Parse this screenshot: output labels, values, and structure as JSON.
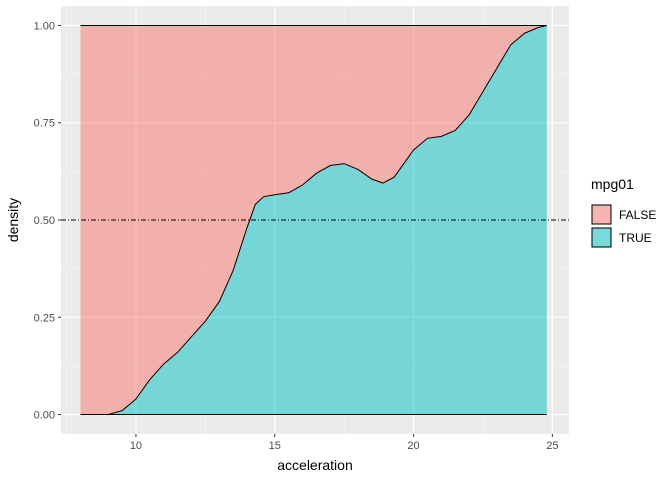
{
  "chart_data": {
    "type": "area",
    "stacking": "fill",
    "xlabel": "acceleration",
    "ylabel": "density",
    "xlim": [
      7.3,
      25.6
    ],
    "ylim": [
      -0.05,
      1.05
    ],
    "x_ticks": [
      10,
      15,
      20,
      25
    ],
    "y_ticks": [
      0,
      0.25,
      0.5,
      0.75,
      1
    ],
    "x_tick_labels": [
      "10",
      "15",
      "20",
      "25"
    ],
    "y_tick_labels": [
      "0.00",
      "0.25",
      "0.50",
      "0.75",
      "1.00"
    ],
    "grid": true,
    "legend": {
      "title": "mpg01",
      "position": "right",
      "entries": [
        {
          "label": "FALSE",
          "color": "#F8766D"
        },
        {
          "label": "TRUE",
          "color": "#00BFC4"
        }
      ]
    },
    "reference_line": {
      "y": 0.5,
      "style": "dotdash"
    },
    "x": [
      8.0,
      9.0,
      9.5,
      10.0,
      10.5,
      11.0,
      11.5,
      12.0,
      12.5,
      13.0,
      13.5,
      14.0,
      14.3,
      14.6,
      15.0,
      15.5,
      16.0,
      16.5,
      17.0,
      17.5,
      18.0,
      18.5,
      18.9,
      19.3,
      19.6,
      20.0,
      20.5,
      21.0,
      21.5,
      22.0,
      22.5,
      23.0,
      23.5,
      24.0,
      24.5,
      24.8
    ],
    "series": [
      {
        "name": "FALSE",
        "values": [
          1,
          1,
          0.99,
          0.96,
          0.91,
          0.87,
          0.84,
          0.8,
          0.76,
          0.71,
          0.63,
          0.52,
          0.46,
          0.44,
          0.435,
          0.43,
          0.41,
          0.38,
          0.36,
          0.355,
          0.37,
          0.395,
          0.405,
          0.39,
          0.36,
          0.32,
          0.29,
          0.285,
          0.27,
          0.23,
          0.17,
          0.11,
          0.05,
          0.02,
          0.005,
          0
        ]
      },
      {
        "name": "TRUE",
        "values": [
          0,
          0,
          0.01,
          0.04,
          0.09,
          0.13,
          0.16,
          0.2,
          0.24,
          0.29,
          0.37,
          0.48,
          0.54,
          0.56,
          0.565,
          0.57,
          0.59,
          0.62,
          0.64,
          0.645,
          0.63,
          0.605,
          0.595,
          0.61,
          0.64,
          0.68,
          0.71,
          0.715,
          0.73,
          0.77,
          0.83,
          0.89,
          0.95,
          0.98,
          0.995,
          1
        ]
      }
    ]
  }
}
